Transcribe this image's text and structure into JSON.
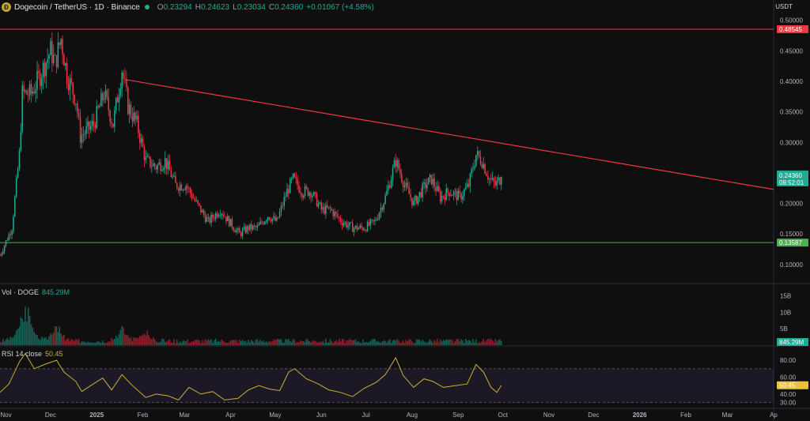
{
  "header": {
    "title": "Dogecoin / TetherUS · 1D · Binance",
    "open_label": "O",
    "open": "0.23294",
    "high_label": "H",
    "high": "0.24623",
    "low_label": "L",
    "low": "0.23034",
    "close_label": "C",
    "close": "0.24360",
    "change": "+0.01067 (+4.58%)"
  },
  "currency": "USDT",
  "volume_label": {
    "name": "Vol · DOGE",
    "value": "845.29M"
  },
  "rsi_label": {
    "name": "RSI 14 close",
    "value": "50.45"
  },
  "badges": {
    "resistance": "0.48545",
    "price": "0.24360",
    "countdown": "08:52:01",
    "support": "0.13587",
    "volume": "845.29M",
    "rsi": "50.45"
  },
  "colors": {
    "up": "#22ab94",
    "down": "#f23645",
    "resistance": "#f23645",
    "support": "#4caf50",
    "rsi": "#c9b037",
    "rsi_band": "#7e57c2",
    "background": "#0f0f0f"
  },
  "chart_data": [
    {
      "type": "candlestick",
      "title": "Dogecoin / TetherUS · 1D · Binance",
      "ylim": [
        0.07,
        0.51
      ],
      "y_ticks": [
        "0.10000",
        "0.15000",
        "0.20000",
        "0.25000",
        "0.30000",
        "0.35000",
        "0.40000",
        "0.45000",
        "0.50000"
      ],
      "x_ticks": [
        "Nov",
        "Dec",
        "2025",
        "Feb",
        "Mar",
        "Apr",
        "May",
        "Jun",
        "Jul",
        "Aug",
        "Sep",
        "Oct",
        "Nov",
        "Dec",
        "2026",
        "Feb",
        "Mar",
        "Ap"
      ],
      "x_range": [
        "2024-10-28",
        "2026-04-01"
      ],
      "close_path": [
        [
          "2024-10-28",
          0.115
        ],
        [
          "2024-11-05",
          0.16
        ],
        [
          "2024-11-10",
          0.28
        ],
        [
          "2024-11-12",
          0.38
        ],
        [
          "2024-11-18",
          0.38
        ],
        [
          "2024-11-24",
          0.41
        ],
        [
          "2024-12-01",
          0.45
        ],
        [
          "2024-12-04",
          0.43
        ],
        [
          "2024-12-08",
          0.47
        ],
        [
          "2024-12-12",
          0.41
        ],
        [
          "2024-12-18",
          0.37
        ],
        [
          "2024-12-21",
          0.31
        ],
        [
          "2024-12-26",
          0.32
        ],
        [
          "2024-12-30",
          0.33
        ],
        [
          "2025-01-06",
          0.38
        ],
        [
          "2025-01-12",
          0.33
        ],
        [
          "2025-01-18",
          0.42
        ],
        [
          "2025-01-22",
          0.36
        ],
        [
          "2025-01-28",
          0.33
        ],
        [
          "2025-02-03",
          0.27
        ],
        [
          "2025-02-10",
          0.26
        ],
        [
          "2025-02-16",
          0.27
        ],
        [
          "2025-02-23",
          0.23
        ],
        [
          "2025-03-02",
          0.23
        ],
        [
          "2025-03-09",
          0.2
        ],
        [
          "2025-03-17",
          0.17
        ],
        [
          "2025-03-25",
          0.19
        ],
        [
          "2025-03-31",
          0.17
        ],
        [
          "2025-04-07",
          0.15
        ],
        [
          "2025-04-13",
          0.16
        ],
        [
          "2025-04-19",
          0.16
        ],
        [
          "2025-04-26",
          0.18
        ],
        [
          "2025-05-02",
          0.17
        ],
        [
          "2025-05-09",
          0.22
        ],
        [
          "2025-05-13",
          0.24
        ],
        [
          "2025-05-19",
          0.22
        ],
        [
          "2025-05-25",
          0.22
        ],
        [
          "2025-06-01",
          0.19
        ],
        [
          "2025-06-07",
          0.19
        ],
        [
          "2025-06-15",
          0.17
        ],
        [
          "2025-06-22",
          0.16
        ],
        [
          "2025-06-30",
          0.16
        ],
        [
          "2025-07-07",
          0.17
        ],
        [
          "2025-07-14",
          0.21
        ],
        [
          "2025-07-21",
          0.27
        ],
        [
          "2025-07-27",
          0.23
        ],
        [
          "2025-08-02",
          0.2
        ],
        [
          "2025-08-10",
          0.23
        ],
        [
          "2025-08-14",
          0.24
        ],
        [
          "2025-08-20",
          0.21
        ],
        [
          "2025-08-26",
          0.22
        ],
        [
          "2025-09-02",
          0.21
        ],
        [
          "2025-09-08",
          0.23
        ],
        [
          "2025-09-13",
          0.28
        ],
        [
          "2025-09-17",
          0.27
        ],
        [
          "2025-09-22",
          0.24
        ],
        [
          "2025-09-26",
          0.23
        ],
        [
          "2025-09-30",
          0.2436
        ]
      ],
      "lines": [
        {
          "name": "resistance",
          "y": 0.48545
        },
        {
          "name": "support",
          "y": 0.13587
        },
        {
          "name": "downtrend",
          "from": [
            "2025-01-20",
            0.403
          ],
          "to": [
            "2026-04-01",
            0.223
          ]
        }
      ]
    },
    {
      "type": "bar",
      "title": "Vol · DOGE",
      "y_ticks": [
        "5B",
        "10B",
        "15B"
      ],
      "ylim": [
        0,
        18
      ],
      "last": "845.29M",
      "peaks": [
        [
          "2024-11-12",
          12
        ],
        [
          "2024-11-16",
          10
        ],
        [
          "2024-12-05",
          8
        ],
        [
          "2025-01-18",
          6
        ],
        [
          "2025-02-03",
          5
        ]
      ]
    },
    {
      "type": "line",
      "title": "RSI 14 close",
      "ylim": [
        25,
        95
      ],
      "y_ticks": [
        "30.00",
        "40.00",
        "60.00",
        "80.00"
      ],
      "band": [
        30,
        70
      ],
      "last": 50.45,
      "points": [
        [
          "2024-10-28",
          42
        ],
        [
          "2024-11-03",
          52
        ],
        [
          "2024-11-10",
          78
        ],
        [
          "2024-11-14",
          88
        ],
        [
          "2024-11-20",
          70
        ],
        [
          "2024-11-27",
          75
        ],
        [
          "2024-12-05",
          80
        ],
        [
          "2024-12-10",
          66
        ],
        [
          "2024-12-18",
          55
        ],
        [
          "2024-12-22",
          43
        ],
        [
          "2024-12-28",
          50
        ],
        [
          "2025-01-05",
          59
        ],
        [
          "2025-01-11",
          45
        ],
        [
          "2025-01-18",
          63
        ],
        [
          "2025-01-25",
          50
        ],
        [
          "2025-02-03",
          36
        ],
        [
          "2025-02-10",
          40
        ],
        [
          "2025-02-18",
          38
        ],
        [
          "2025-02-25",
          33
        ],
        [
          "2025-03-04",
          48
        ],
        [
          "2025-03-12",
          40
        ],
        [
          "2025-03-20",
          43
        ],
        [
          "2025-03-28",
          33
        ],
        [
          "2025-04-06",
          35
        ],
        [
          "2025-04-13",
          45
        ],
        [
          "2025-04-20",
          50
        ],
        [
          "2025-04-27",
          46
        ],
        [
          "2025-05-04",
          44
        ],
        [
          "2025-05-10",
          66
        ],
        [
          "2025-05-14",
          70
        ],
        [
          "2025-05-22",
          58
        ],
        [
          "2025-05-30",
          52
        ],
        [
          "2025-06-06",
          45
        ],
        [
          "2025-06-14",
          42
        ],
        [
          "2025-06-22",
          37
        ],
        [
          "2025-06-30",
          47
        ],
        [
          "2025-07-08",
          54
        ],
        [
          "2025-07-14",
          63
        ],
        [
          "2025-07-21",
          83
        ],
        [
          "2025-07-26",
          62
        ],
        [
          "2025-08-02",
          48
        ],
        [
          "2025-08-09",
          58
        ],
        [
          "2025-08-15",
          55
        ],
        [
          "2025-08-22",
          48
        ],
        [
          "2025-08-30",
          50
        ],
        [
          "2025-09-07",
          52
        ],
        [
          "2025-09-13",
          75
        ],
        [
          "2025-09-18",
          66
        ],
        [
          "2025-09-23",
          48
        ],
        [
          "2025-09-27",
          42
        ],
        [
          "2025-09-30",
          50.45
        ]
      ]
    }
  ]
}
